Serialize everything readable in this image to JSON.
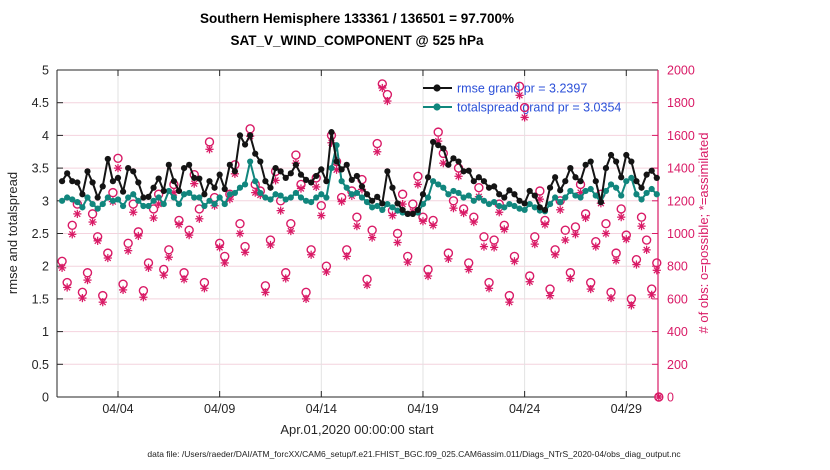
{
  "chart_data": {
    "type": "line",
    "title": "Southern Hemisphere 133361 / 136501 = 97.700%",
    "subtitle": "SAT_V_WIND_COMPONENT @ 525 hPa",
    "xlabel": "Apr.01,2020 00:00:00 start",
    "ylabel_left": "rmse and totalspread",
    "ylabel_right": "# of obs: o=possible; *=assimilated",
    "grid": true,
    "legend_position": "top-right",
    "x_domain_days": [
      0,
      29.56
    ],
    "x_ticks": [
      {
        "day": 3,
        "label": "04/04"
      },
      {
        "day": 8,
        "label": "04/09"
      },
      {
        "day": 13,
        "label": "04/14"
      },
      {
        "day": 18,
        "label": "04/19"
      },
      {
        "day": 23,
        "label": "04/24"
      },
      {
        "day": 28,
        "label": "04/29"
      }
    ],
    "ylim_left": [
      0,
      5
    ],
    "ytick_step_left": 0.5,
    "ylim_right": [
      0,
      2000
    ],
    "ytick_step_right": 200,
    "t_start_day": 0.25,
    "t_step_day": 0.25,
    "series": [
      {
        "name": "rmse",
        "label": "rmse grand pr = 3.2397",
        "grand_pr": 3.2397,
        "color_key": "rmse",
        "axis": "left",
        "marker": "dot",
        "values": [
          3.3,
          3.42,
          3.3,
          3.28,
          3.1,
          3.45,
          3.28,
          3.05,
          3.22,
          3.64,
          3.3,
          3.35,
          3.14,
          3.5,
          3.45,
          3.28,
          3.05,
          3.06,
          3.2,
          3.34,
          3.15,
          3.55,
          3.3,
          3.15,
          3.5,
          3.55,
          3.35,
          3.34,
          3.1,
          3.3,
          3.2,
          3.4,
          3.18,
          3.55,
          3.45,
          4.0,
          3.86,
          4.0,
          3.72,
          3.6,
          3.3,
          3.2,
          3.5,
          3.45,
          3.35,
          3.42,
          3.55,
          3.4,
          3.32,
          3.28,
          3.38,
          3.48,
          3.3,
          4.05,
          3.6,
          3.48,
          3.55,
          3.32,
          3.38,
          3.22,
          3.1,
          3.0,
          3.06,
          2.96,
          3.45,
          3.2,
          2.96,
          2.86,
          2.8,
          2.8,
          2.86,
          3.1,
          3.36,
          3.9,
          3.85,
          3.8,
          3.55,
          3.65,
          3.6,
          3.45,
          3.46,
          3.3,
          3.36,
          3.3,
          3.2,
          3.22,
          3.1,
          3.05,
          3.16,
          3.1,
          3.0,
          2.96,
          3.15,
          3.08,
          2.9,
          2.86,
          3.2,
          3.36,
          3.16,
          3.3,
          3.5,
          3.36,
          3.3,
          3.55,
          3.6,
          3.3,
          2.98,
          3.5,
          3.7,
          3.6,
          3.36,
          3.7,
          3.6,
          3.3,
          3.2,
          3.4,
          3.46,
          3.35
        ]
      },
      {
        "name": "totalspread",
        "label": "totalspread grand pr = 3.0354",
        "grand_pr": 3.0354,
        "color_key": "totalspread",
        "axis": "left",
        "marker": "dot",
        "values": [
          3.0,
          3.05,
          3.02,
          2.98,
          2.9,
          3.05,
          2.95,
          2.88,
          2.95,
          3.05,
          3.0,
          3.02,
          2.92,
          3.05,
          3.1,
          3.0,
          2.92,
          2.92,
          3.0,
          3.05,
          2.95,
          3.15,
          3.05,
          2.95,
          3.1,
          3.12,
          3.05,
          3.05,
          2.92,
          3.0,
          2.95,
          3.05,
          2.95,
          3.1,
          3.12,
          3.2,
          3.25,
          3.6,
          3.3,
          3.12,
          3.05,
          3.02,
          3.1,
          3.08,
          3.02,
          3.05,
          3.12,
          3.05,
          3.0,
          2.98,
          3.05,
          3.1,
          3.05,
          3.5,
          3.85,
          3.3,
          3.2,
          3.1,
          3.12,
          3.05,
          2.98,
          2.9,
          2.92,
          2.86,
          2.95,
          2.9,
          2.85,
          2.82,
          2.8,
          2.8,
          2.82,
          2.95,
          3.05,
          3.3,
          3.25,
          3.2,
          3.1,
          3.15,
          3.12,
          3.05,
          3.08,
          3.0,
          3.05,
          3.0,
          2.95,
          2.98,
          2.92,
          2.9,
          2.95,
          2.92,
          2.88,
          2.86,
          2.95,
          2.9,
          2.85,
          2.84,
          2.95,
          3.05,
          2.98,
          3.05,
          3.15,
          3.08,
          3.05,
          3.15,
          3.18,
          3.08,
          2.98,
          3.15,
          3.25,
          3.2,
          3.08,
          3.3,
          3.35,
          3.1,
          3.02,
          3.12,
          3.18,
          3.1
        ]
      },
      {
        "name": "possible",
        "label": "o=possible",
        "color_key": "obs",
        "axis": "right",
        "marker": "circle",
        "values": [
          830,
          700,
          1050,
          1180,
          640,
          760,
          1120,
          980,
          620,
          880,
          1250,
          1460,
          690,
          940,
          1180,
          1010,
          650,
          820,
          1150,
          1240,
          780,
          900,
          1300,
          1080,
          760,
          1020,
          1360,
          1150,
          700,
          1560,
          1220,
          940,
          860,
          1240,
          1420,
          1060,
          920,
          1640,
          1300,
          1260,
          680,
          960,
          1380,
          1200,
          760,
          1060,
          1480,
          1300,
          640,
          900,
          1340,
          1170,
          800,
          1600,
          1440,
          1220,
          900,
          1260,
          1100,
          1330,
          720,
          1020,
          1550,
          1915,
          1850,
          1140,
          1000,
          1240,
          860,
          1180,
          1350,
          1100,
          780,
          1080,
          1620,
          1490,
          880,
          1200,
          1400,
          1150,
          820,
          1100,
          1280,
          980,
          700,
          960,
          1180,
          1050,
          620,
          860,
          1900,
          1770,
          740,
          980,
          1260,
          1080,
          660,
          900,
          1200,
          1020,
          760,
          1040,
          1300,
          1120,
          700,
          950,
          1240,
          1060,
          640,
          880,
          1150,
          990,
          600,
          840,
          1100,
          960,
          660,
          820
        ]
      },
      {
        "name": "assimilated",
        "label": "*=assimilated",
        "color_key": "obs",
        "axis": "right",
        "marker": "asterisk",
        "values": [
          790,
          670,
          995,
          1120,
          605,
          715,
          1070,
          955,
          580,
          850,
          1195,
          1400,
          655,
          895,
          1130,
          985,
          610,
          790,
          1095,
          1180,
          745,
          855,
          1250,
          1055,
          720,
          990,
          1305,
          1090,
          665,
          1515,
          1170,
          915,
          820,
          1210,
          1365,
          1000,
          885,
          1595,
          1250,
          1235,
          640,
          930,
          1325,
          1140,
          725,
          1015,
          1430,
          1275,
          600,
          870,
          1285,
          1110,
          765,
          1555,
          1390,
          1195,
          860,
          1230,
          1045,
          1270,
          685,
          975,
          1500,
          1890,
          1810,
          1110,
          945,
          1180,
          825,
          1135,
          1300,
          1075,
          740,
          1050,
          1565,
          1430,
          845,
          1155,
          1350,
          1125,
          780,
          1070,
          1225,
          920,
          665,
          915,
          1130,
          1025,
          580,
          830,
          1845,
          1710,
          705,
          935,
          1210,
          1055,
          620,
          870,
          1145,
          960,
          725,
          995,
          1250,
          1095,
          660,
          920,
          1185,
          1000,
          605,
          835,
          1100,
          965,
          560,
          810,
          1045,
          900,
          625,
          775
        ]
      }
    ],
    "zero_obs_endpoint": {
      "day": 29.6,
      "possible": 0,
      "assimilated": 0
    }
  },
  "colors": {
    "rmse": "#141414",
    "totalspread": "#11867d",
    "obs": "#d91a66",
    "legend_text": "#2b4fd8",
    "axis_dark": "#262626",
    "grid_pink": "#f4d3de",
    "grid_gray": "#e2e2e2"
  },
  "footer": {
    "text": "data file: /Users/raeder/DAI/ATM_forcXX/CAM6_setup/f.e21.FHIST_BGC.f09_025.CAM6assim.011/Diags_NTrS_2020-04/obs_diag_output.nc"
  }
}
